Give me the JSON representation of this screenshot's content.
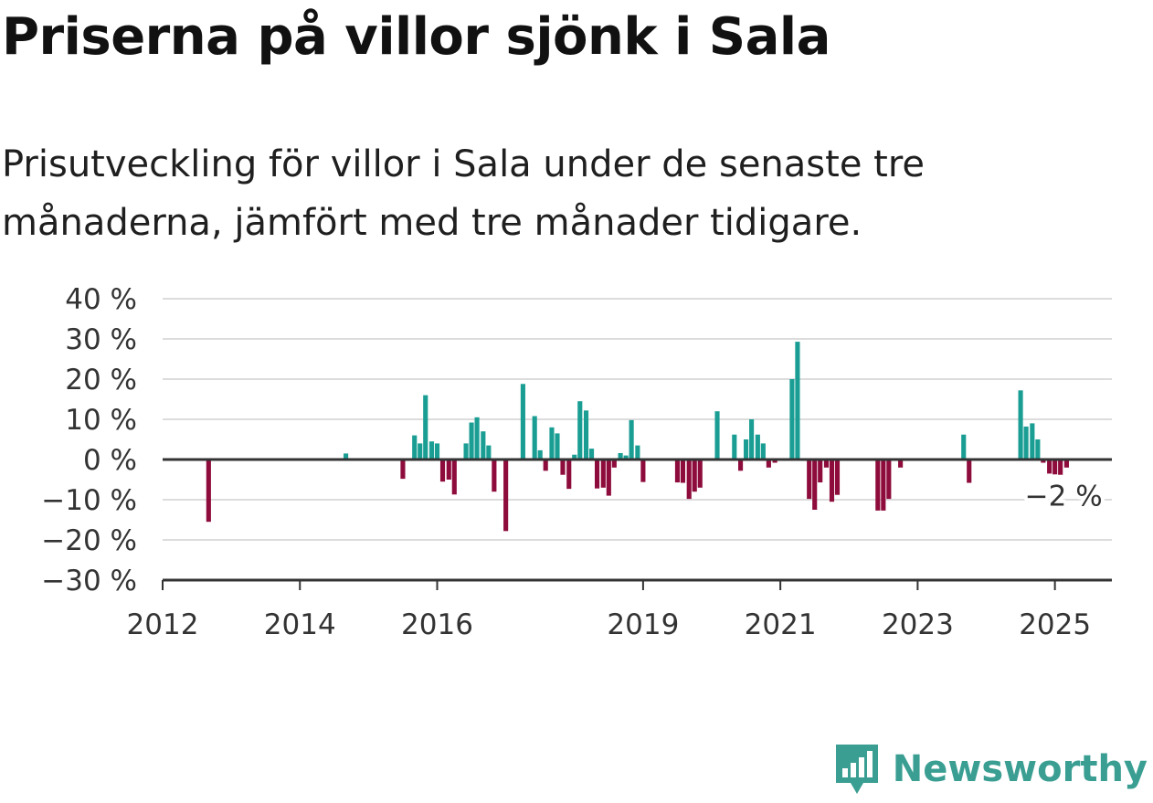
{
  "header": {
    "title": "Priserna på villor sjönk i Sala",
    "subtitle": "Prisutveckling för villor i Sala under de senaste tre månaderna, jämfört med tre månader tidigare."
  },
  "brand": {
    "name": "Newsworthy",
    "color": "#3a9e92"
  },
  "chart_data": {
    "type": "bar",
    "colors": {
      "positive": "#1a9e94",
      "negative": "#8e0c3c",
      "grid": "#dcdcdc",
      "axis": "#333333"
    },
    "ylim": [
      -30,
      40
    ],
    "yticks": [
      -30,
      -20,
      -10,
      0,
      10,
      20,
      30,
      40
    ],
    "ytick_labels": [
      "−30 %",
      "−20 %",
      "−10 %",
      "0 %",
      "10 %",
      "20 %",
      "30 %",
      "40 %"
    ],
    "xlim": [
      2012,
      2025.83
    ],
    "xticks": [
      2012,
      2014,
      2016,
      2019,
      2021,
      2023,
      2025
    ],
    "xtick_labels": [
      "2012",
      "2014",
      "2016",
      "2019",
      "2021",
      "2023",
      "2025"
    ],
    "grid": true,
    "annotation": {
      "text": "−2 %",
      "x": 2025.1,
      "y": -2
    },
    "series": [
      {
        "values": [
          [
            2012.67,
            -15.5
          ],
          [
            2014.67,
            1.5
          ],
          [
            2015.5,
            -4.8
          ],
          [
            2015.67,
            6
          ],
          [
            2015.75,
            4
          ],
          [
            2015.83,
            16
          ],
          [
            2015.92,
            4.5
          ],
          [
            2016.0,
            4
          ],
          [
            2016.08,
            -5.5
          ],
          [
            2016.17,
            -5
          ],
          [
            2016.25,
            -8.7
          ],
          [
            2016.42,
            4
          ],
          [
            2016.5,
            9.2
          ],
          [
            2016.58,
            10.5
          ],
          [
            2016.67,
            7
          ],
          [
            2016.75,
            3.5
          ],
          [
            2016.83,
            -8
          ],
          [
            2017.0,
            -17.8
          ],
          [
            2017.25,
            18.8
          ],
          [
            2017.42,
            10.8
          ],
          [
            2017.5,
            2.3
          ],
          [
            2017.58,
            -2.8
          ],
          [
            2017.67,
            8
          ],
          [
            2017.75,
            6.5
          ],
          [
            2017.83,
            -3.8
          ],
          [
            2017.92,
            -7.3
          ],
          [
            2018.0,
            1.2
          ],
          [
            2018.08,
            14.5
          ],
          [
            2018.17,
            12.2
          ],
          [
            2018.25,
            2.7
          ],
          [
            2018.33,
            -7.2
          ],
          [
            2018.42,
            -7
          ],
          [
            2018.5,
            -9
          ],
          [
            2018.58,
            -2
          ],
          [
            2018.67,
            1.6
          ],
          [
            2018.75,
            1
          ],
          [
            2018.83,
            9.8
          ],
          [
            2018.92,
            3.5
          ],
          [
            2019.0,
            -5.6
          ],
          [
            2019.5,
            -5.7
          ],
          [
            2019.58,
            -5.8
          ],
          [
            2019.67,
            -9.8
          ],
          [
            2019.75,
            -8
          ],
          [
            2019.83,
            -7
          ],
          [
            2020.08,
            12
          ],
          [
            2020.33,
            6.2
          ],
          [
            2020.42,
            -2.8
          ],
          [
            2020.5,
            5
          ],
          [
            2020.58,
            10
          ],
          [
            2020.67,
            6.2
          ],
          [
            2020.75,
            4
          ],
          [
            2020.83,
            -2
          ],
          [
            2020.92,
            -0.8
          ],
          [
            2021.17,
            20
          ],
          [
            2021.25,
            29.3
          ],
          [
            2021.42,
            -9.8
          ],
          [
            2021.5,
            -12.5
          ],
          [
            2021.58,
            -5.7
          ],
          [
            2021.67,
            -2
          ],
          [
            2021.75,
            -10.5
          ],
          [
            2021.83,
            -8.8
          ],
          [
            2022.42,
            -12.7
          ],
          [
            2022.5,
            -12.7
          ],
          [
            2022.58,
            -9.8
          ],
          [
            2022.75,
            -2
          ],
          [
            2023.67,
            6.2
          ],
          [
            2023.75,
            -5.8
          ],
          [
            2024.5,
            17.2
          ],
          [
            2024.58,
            8.2
          ],
          [
            2024.67,
            9
          ],
          [
            2024.75,
            5
          ],
          [
            2024.83,
            -0.8
          ],
          [
            2024.92,
            -3.5
          ],
          [
            2025.0,
            -3.7
          ],
          [
            2025.08,
            -3.8
          ],
          [
            2025.17,
            -2
          ]
        ]
      }
    ]
  }
}
